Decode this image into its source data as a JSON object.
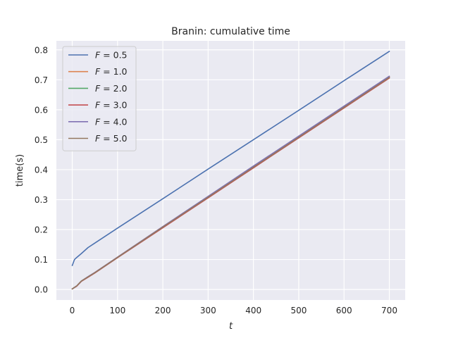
{
  "chart_data": {
    "type": "line",
    "title": "Branin: cumulative time",
    "xlabel": "t",
    "ylabel": "time(s)",
    "xlim": [
      -35,
      735
    ],
    "ylim": [
      -0.035,
      0.83
    ],
    "xticks": [
      0,
      100,
      200,
      300,
      400,
      500,
      600,
      700
    ],
    "yticks": [
      0.0,
      0.1,
      0.2,
      0.3,
      0.4,
      0.5,
      0.6,
      0.7,
      0.8
    ],
    "grid": true,
    "legend_position": "top-left",
    "series": [
      {
        "name": "F = 0.5",
        "legend_var": "F",
        "legend_val": "0.5",
        "color": "#4c72b0",
        "x": [
          0,
          5,
          10,
          20,
          35,
          50,
          100,
          200,
          300,
          400,
          500,
          600,
          700
        ],
        "y": [
          0.08,
          0.1,
          0.107,
          0.12,
          0.14,
          0.155,
          0.205,
          0.303,
          0.402,
          0.5,
          0.598,
          0.697,
          0.795
        ]
      },
      {
        "name": "F = 1.0",
        "legend_var": "F",
        "legend_val": "1.0",
        "color": "#dd8452",
        "x": [
          0,
          10,
          20,
          35,
          50,
          100,
          200,
          300,
          400,
          500,
          600,
          700
        ],
        "y": [
          0.002,
          0.012,
          0.028,
          0.042,
          0.057,
          0.108,
          0.21,
          0.31,
          0.41,
          0.51,
          0.61,
          0.71
        ]
      },
      {
        "name": "F = 2.0",
        "legend_var": "F",
        "legend_val": "2.0",
        "color": "#55a868",
        "x": [
          0,
          10,
          20,
          35,
          50,
          100,
          200,
          300,
          400,
          500,
          600,
          700
        ],
        "y": [
          0.002,
          0.012,
          0.028,
          0.042,
          0.056,
          0.107,
          0.208,
          0.308,
          0.408,
          0.508,
          0.608,
          0.708
        ]
      },
      {
        "name": "F = 3.0",
        "legend_var": "F",
        "legend_val": "3.0",
        "color": "#c44e52",
        "x": [
          0,
          10,
          20,
          35,
          50,
          100,
          200,
          300,
          400,
          500,
          600,
          700
        ],
        "y": [
          0.002,
          0.011,
          0.027,
          0.041,
          0.055,
          0.106,
          0.206,
          0.306,
          0.406,
          0.506,
          0.606,
          0.706
        ]
      },
      {
        "name": "F = 4.0",
        "legend_var": "F",
        "legend_val": "4.0",
        "color": "#8172b3",
        "x": [
          0,
          10,
          20,
          35,
          50,
          100,
          200,
          300,
          400,
          500,
          600,
          700
        ],
        "y": [
          0.002,
          0.012,
          0.028,
          0.043,
          0.057,
          0.108,
          0.21,
          0.311,
          0.412,
          0.512,
          0.612,
          0.712
        ]
      },
      {
        "name": "F = 5.0",
        "legend_var": "F",
        "legend_val": "5.0",
        "color": "#937860",
        "x": [
          0,
          10,
          20,
          35,
          50,
          100,
          200,
          300,
          400,
          500,
          600,
          700
        ],
        "y": [
          0.002,
          0.012,
          0.028,
          0.042,
          0.056,
          0.107,
          0.208,
          0.308,
          0.408,
          0.508,
          0.608,
          0.708
        ]
      }
    ]
  }
}
